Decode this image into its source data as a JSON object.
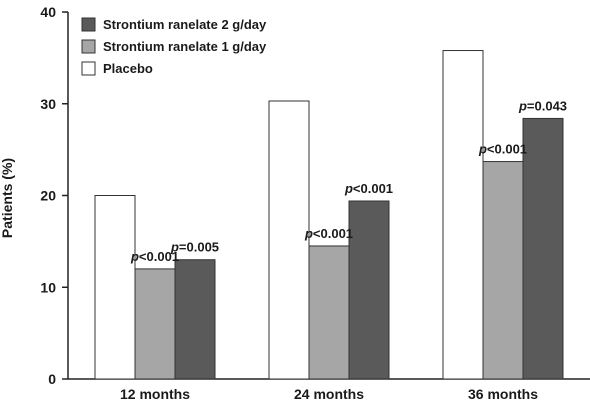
{
  "chart_data": {
    "type": "bar",
    "ylabel": "Patients (%)",
    "xlabel": "",
    "ylim": [
      0,
      40
    ],
    "yticks": [
      "0",
      "10",
      "20",
      "30",
      "40"
    ],
    "categories": [
      "12 months",
      "24 months",
      "36 months"
    ],
    "legend_position": "top-left",
    "series": [
      {
        "name": "Placebo",
        "color": "#ffffff",
        "values": [
          20.0,
          30.3,
          35.8
        ],
        "annotations": [
          "",
          "",
          ""
        ]
      },
      {
        "name": "Strontium ranelate 1 g/day",
        "color": "#a6a6a6",
        "values": [
          12.0,
          14.5,
          23.7
        ],
        "annotations": [
          "<0.001",
          "<0.001",
          "<0.001"
        ]
      },
      {
        "name": "Strontium ranelate 2 g/day",
        "color": "#5a5a5a",
        "values": [
          13.0,
          19.4,
          28.4
        ],
        "annotations": [
          "=0.005",
          "<0.001",
          "=0.043"
        ]
      }
    ],
    "legend_order": [
      2,
      1,
      0
    ],
    "annotation_prefix": "p"
  }
}
